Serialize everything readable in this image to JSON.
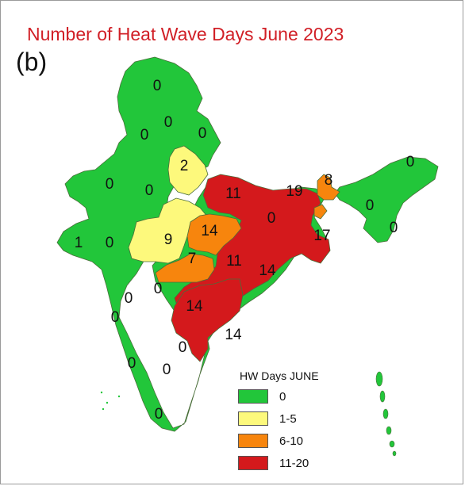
{
  "title": "Number of Heat Wave Days June 2023",
  "panel_label": "(b)",
  "colors": {
    "zero": "#22c63a",
    "low": "#fdf97c",
    "mid": "#f7850d",
    "high": "#d4191c",
    "border": "#4a6e3a",
    "title": "#d11f26"
  },
  "legend": {
    "title": "HW Days JUNE",
    "items": [
      {
        "label": "0",
        "color": "#22c63a"
      },
      {
        "label": "1-5",
        "color": "#fdf97c"
      },
      {
        "label": "6-10",
        "color": "#f7850d"
      },
      {
        "label": "11-20",
        "color": "#d4191c"
      }
    ]
  },
  "values": [
    "0",
    "0",
    "0",
    "0",
    "0",
    "2",
    "0",
    "0",
    "11",
    "19",
    "8",
    "0",
    "0",
    "0",
    "14",
    "9",
    "1",
    "0",
    "17",
    "7",
    "11",
    "14",
    "0",
    "0",
    "14",
    "14",
    "0",
    "0",
    "0",
    "0",
    "0"
  ]
}
